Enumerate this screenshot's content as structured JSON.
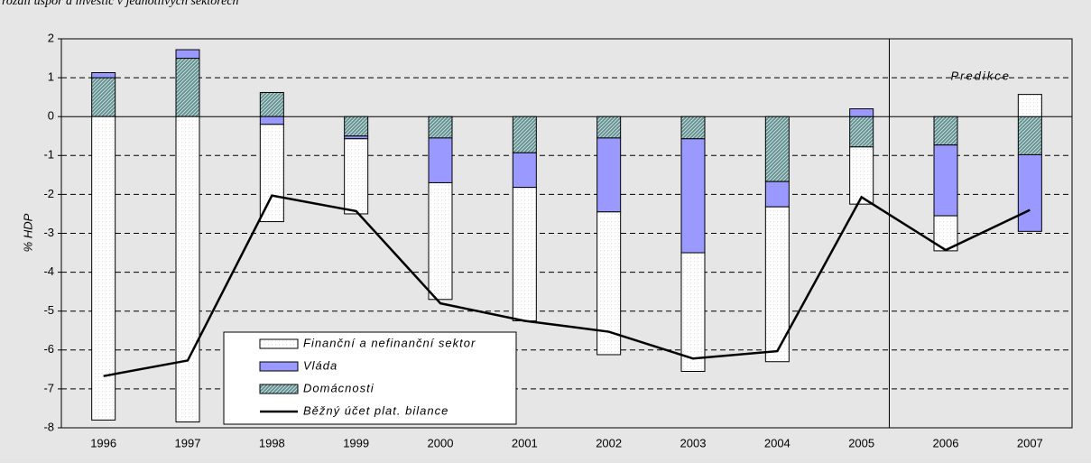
{
  "chart_data": {
    "type": "stacked-bar-line",
    "subtitle": "rozdíl úspor a investic v jednotlivých sektorech",
    "y_label": "% HDP",
    "categories": [
      "1996",
      "1997",
      "1998",
      "1999",
      "2000",
      "2001",
      "2002",
      "2003",
      "2004",
      "2005",
      "2006",
      "2007"
    ],
    "series": [
      {
        "name": "Finanční a nefinanční sektor",
        "color": "#ffffff",
        "values": [
          -7.8,
          -7.85,
          -2.5,
          -1.93,
          -3.0,
          -3.43,
          -3.67,
          -3.05,
          -3.98,
          -1.47,
          -0.9,
          0.57
        ]
      },
      {
        "name": "Vláda",
        "color": "#9999ff",
        "values": [
          0.13,
          0.22,
          -0.2,
          -0.07,
          -1.15,
          -0.89,
          -1.9,
          -2.93,
          -0.65,
          0.2,
          -1.82,
          -1.97
        ]
      },
      {
        "name": "Domácnosti",
        "color": "#5f8f8f",
        "values": [
          1.0,
          1.5,
          0.62,
          -0.5,
          -0.55,
          -0.93,
          -0.55,
          -0.57,
          -1.67,
          -0.78,
          -0.73,
          -0.98
        ]
      }
    ],
    "line": {
      "name": "Běžný účet plat. bilance",
      "color": "#000000",
      "values": [
        -6.67,
        -6.27,
        -2.03,
        -2.43,
        -4.8,
        -5.25,
        -5.53,
        -6.22,
        -6.03,
        -2.07,
        -3.43,
        -2.4
      ]
    },
    "annotation": {
      "text": "Predikce",
      "categories": [
        "2006",
        "2007"
      ]
    },
    "ylim": [
      -8,
      2
    ],
    "yticks": [
      -8,
      -7,
      -6,
      -5,
      -4,
      -3,
      -2,
      -1,
      0,
      1,
      2
    ],
    "grid": true
  }
}
